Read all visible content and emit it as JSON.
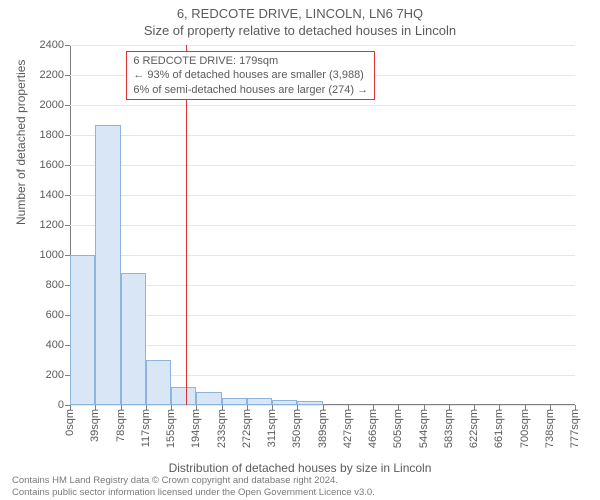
{
  "title": "6, REDCOTE DRIVE, LINCOLN, LN6 7HQ",
  "subtitle": "Size of property relative to detached houses in Lincoln",
  "y_axis": {
    "label": "Number of detached properties",
    "min": 0,
    "max": 2400,
    "step": 200
  },
  "x_axis": {
    "label": "Distribution of detached houses by size in Lincoln",
    "ticks": [
      "0sqm",
      "39sqm",
      "78sqm",
      "117sqm",
      "155sqm",
      "194sqm",
      "233sqm",
      "272sqm",
      "311sqm",
      "350sqm",
      "389sqm",
      "427sqm",
      "466sqm",
      "505sqm",
      "544sqm",
      "583sqm",
      "622sqm",
      "661sqm",
      "700sqm",
      "738sqm",
      "777sqm"
    ]
  },
  "reference": {
    "value_sqm": 179,
    "line1": "6 REDCOTE DRIVE: 179sqm",
    "line2": "← 93% of detached houses are smaller (3,988)",
    "line3": "6% of semi-detached houses are larger (274) →"
  },
  "bars": [
    1000,
    1870,
    880,
    300,
    120,
    90,
    50,
    45,
    35,
    25,
    0,
    0,
    0,
    0,
    0,
    0,
    0,
    0,
    0,
    0
  ],
  "style": {
    "bar_fill": "#d9e6f5",
    "bar_stroke": "#8db4dc",
    "grid_color": "#e6e6e6",
    "ref_color": "#d33",
    "text_color": "#5b5b5b",
    "background": "#ffffff",
    "title_fontsize": 13,
    "label_fontsize": 12,
    "tick_fontsize": 11,
    "footer_fontsize": 9.5
  },
  "footer": {
    "line1": "Contains HM Land Registry data © Crown copyright and database right 2024.",
    "line2": "Contains public sector information licensed under the Open Government Licence v3.0."
  }
}
